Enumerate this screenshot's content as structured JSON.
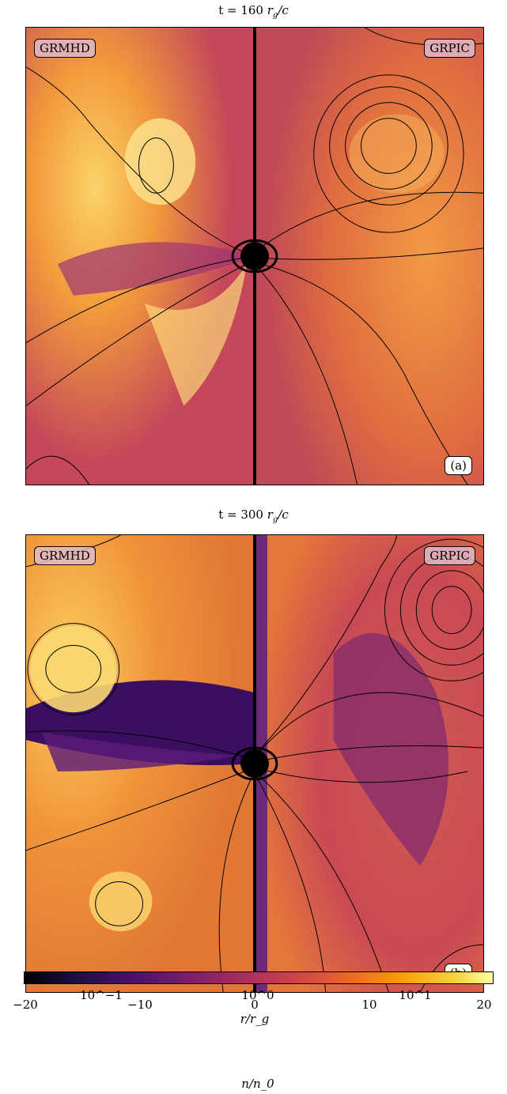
{
  "panels": [
    {
      "title": "t = 160 r_g/c",
      "left_label": "GRMHD",
      "right_label": "GRPIC",
      "panel_tag": "(a)"
    },
    {
      "title": "t = 300 r_g/c",
      "left_label": "GRMHD",
      "right_label": "GRPIC",
      "panel_tag": "(b)"
    }
  ],
  "x_axis": {
    "label": "r/r_g",
    "ticks": [
      "−20",
      "−10",
      "0",
      "10",
      "20"
    ]
  },
  "colorbar": {
    "label": "n/n_0",
    "ticks": [
      "10^−1",
      "10^0",
      "10^1"
    ],
    "scale": "log",
    "colormap": "inferno"
  },
  "colors": {
    "bh": "#000000",
    "bg_warm": "#e8833a",
    "bg_dark": "#a8345a"
  }
}
